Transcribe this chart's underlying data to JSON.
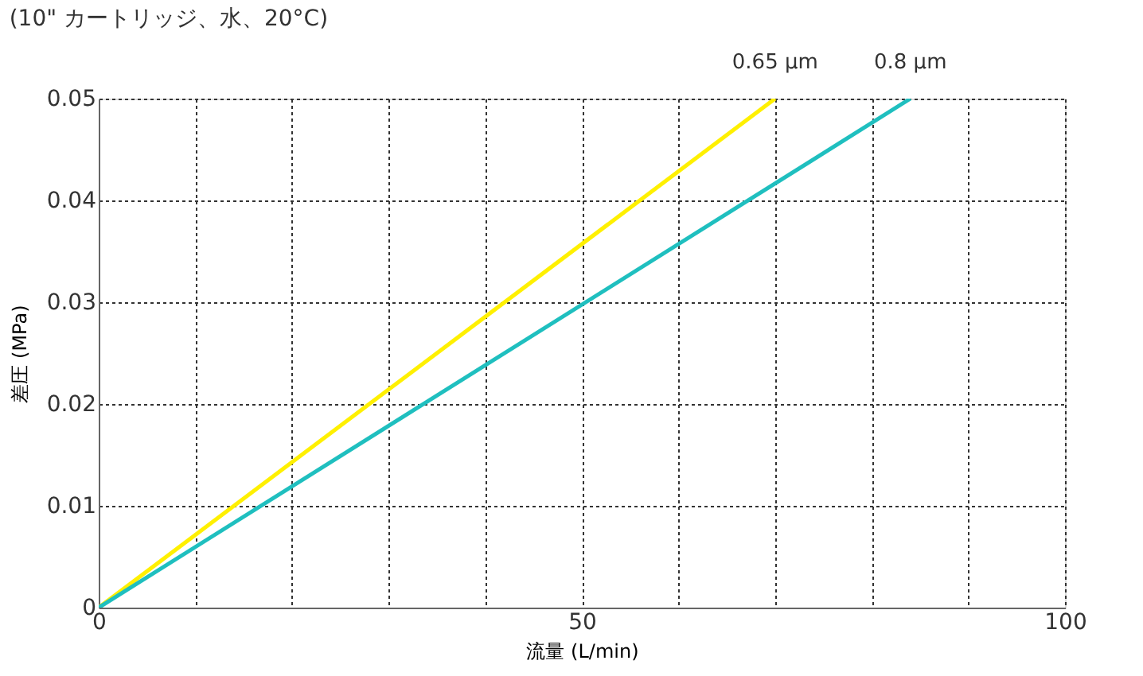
{
  "chart_data": {
    "type": "line",
    "title": "(10\" カートリッジ、水、20°C)",
    "xlabel": "流量 (L/min)",
    "ylabel": "差圧 (MPa)",
    "series": [
      {
        "name": "0.65 µm",
        "color": "#fff000",
        "x": [
          0,
          70
        ],
        "values": [
          0,
          0.05
        ]
      },
      {
        "name": "0.8 µm",
        "color": "#1fbfbf",
        "x": [
          0,
          84
        ],
        "values": [
          0,
          0.05
        ]
      }
    ],
    "xlim": [
      0,
      100
    ],
    "ylim": [
      0,
      0.05
    ],
    "xticks": [
      0,
      {
        "value": 10,
        "label": null
      },
      {
        "value": 20,
        "label": null
      },
      {
        "value": 30,
        "label": null
      },
      {
        "value": 40,
        "label": null
      },
      50,
      {
        "value": 60,
        "label": null
      },
      {
        "value": 70,
        "label": null
      },
      {
        "value": 80,
        "label": null
      },
      {
        "value": 90,
        "label": null
      },
      100
    ],
    "yticks": [
      0,
      0.01,
      0.02,
      0.03,
      0.04,
      0.05
    ],
    "grid": true,
    "legend": false,
    "marker": "none",
    "line_style": "solid"
  }
}
